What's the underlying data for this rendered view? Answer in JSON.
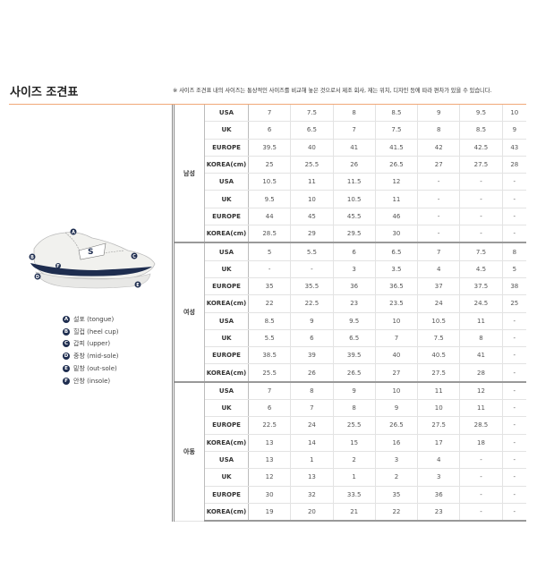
{
  "title": "사이즈 조견표",
  "notice": "※ 사이즈 조견표 내의 사이즈는 통상적인 사이즈를 비교해 놓은 것으로서 제조 회사, 재는 위치, 디자인 등에 따라 편차가 있을 수 있습니다.",
  "accent_color": "#f0a878",
  "shoe_parts": [
    {
      "letter": "A",
      "label": "설포 (tongue)"
    },
    {
      "letter": "B",
      "label": "힐컵 (heel cup)"
    },
    {
      "letter": "C",
      "label": "갑피 (upper)"
    },
    {
      "letter": "D",
      "label": "중창 (mid-sole)"
    },
    {
      "letter": "E",
      "label": "밑창 (out-sole)"
    },
    {
      "letter": "F",
      "label": "안창 (insole)"
    }
  ],
  "table": {
    "groups": [
      {
        "name": "남성",
        "blocks": [
          [
            [
              "USA",
              "7",
              "7.5",
              "8",
              "8.5",
              "9",
              "9.5",
              "10"
            ],
            [
              "UK",
              "6",
              "6.5",
              "7",
              "7.5",
              "8",
              "8.5",
              "9"
            ],
            [
              "EUROPE",
              "39.5",
              "40",
              "41",
              "41.5",
              "42",
              "42.5",
              "43"
            ],
            [
              "KOREA(cm)",
              "25",
              "25.5",
              "26",
              "26.5",
              "27",
              "27.5",
              "28"
            ]
          ],
          [
            [
              "USA",
              "10.5",
              "11",
              "11.5",
              "12",
              "-",
              "-",
              "-"
            ],
            [
              "UK",
              "9.5",
              "10",
              "10.5",
              "11",
              "-",
              "-",
              "-"
            ],
            [
              "EUROPE",
              "44",
              "45",
              "45.5",
              "46",
              "-",
              "-",
              "-"
            ],
            [
              "KOREA(cm)",
              "28.5",
              "29",
              "29.5",
              "30",
              "-",
              "-",
              "-"
            ]
          ]
        ]
      },
      {
        "name": "여성",
        "blocks": [
          [
            [
              "USA",
              "5",
              "5.5",
              "6",
              "6.5",
              "7",
              "7.5",
              "8"
            ],
            [
              "UK",
              "-",
              "-",
              "3",
              "3.5",
              "4",
              "4.5",
              "5"
            ],
            [
              "EUROPE",
              "35",
              "35.5",
              "36",
              "36.5",
              "37",
              "37.5",
              "38"
            ],
            [
              "KOREA(cm)",
              "22",
              "22.5",
              "23",
              "23.5",
              "24",
              "24.5",
              "25"
            ]
          ],
          [
            [
              "USA",
              "8.5",
              "9",
              "9.5",
              "10",
              "10.5",
              "11",
              "-"
            ],
            [
              "UK",
              "5.5",
              "6",
              "6.5",
              "7",
              "7.5",
              "8",
              "-"
            ],
            [
              "EUROPE",
              "38.5",
              "39",
              "39.5",
              "40",
              "40.5",
              "41",
              "-"
            ],
            [
              "KOREA(cm)",
              "25.5",
              "26",
              "26.5",
              "27",
              "27.5",
              "28",
              "-"
            ]
          ]
        ]
      },
      {
        "name": "아동",
        "blocks": [
          [
            [
              "USA",
              "7",
              "8",
              "9",
              "10",
              "11",
              "12",
              "-"
            ],
            [
              "UK",
              "6",
              "7",
              "8",
              "9",
              "10",
              "11",
              "-"
            ],
            [
              "EUROPE",
              "22.5",
              "24",
              "25.5",
              "26.5",
              "27.5",
              "28.5",
              "-"
            ],
            [
              "KOREA(cm)",
              "13",
              "14",
              "15",
              "16",
              "17",
              "18",
              "-"
            ]
          ],
          [
            [
              "USA",
              "13",
              "1",
              "2",
              "3",
              "4",
              "-",
              "-"
            ],
            [
              "UK",
              "12",
              "13",
              "1",
              "2",
              "3",
              "-",
              "-"
            ],
            [
              "EUROPE",
              "30",
              "32",
              "33.5",
              "35",
              "36",
              "-",
              "-"
            ],
            [
              "KOREA(cm)",
              "19",
              "20",
              "21",
              "22",
              "23",
              "-",
              "-"
            ]
          ]
        ]
      }
    ]
  }
}
